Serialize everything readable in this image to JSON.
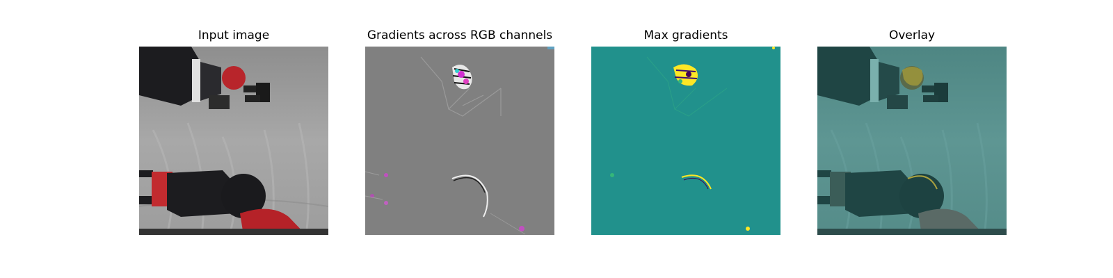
{
  "panels": [
    {
      "title": "Input image",
      "content": "robot-arms-photo"
    },
    {
      "title": "Gradients across RGB channels",
      "content": "rgb-gradient-map"
    },
    {
      "title": "Max gradients",
      "content": "max-gradient-map"
    },
    {
      "title": "Overlay",
      "content": "gradient-overlay"
    }
  ],
  "colors": {
    "background": "#ffffff",
    "gradient_gray": "#808080",
    "viridis_mid": "#21918c",
    "highlight_yellow": "#fde725",
    "robot_red": "#b8252b",
    "robot_black": "#1c1c1f"
  }
}
